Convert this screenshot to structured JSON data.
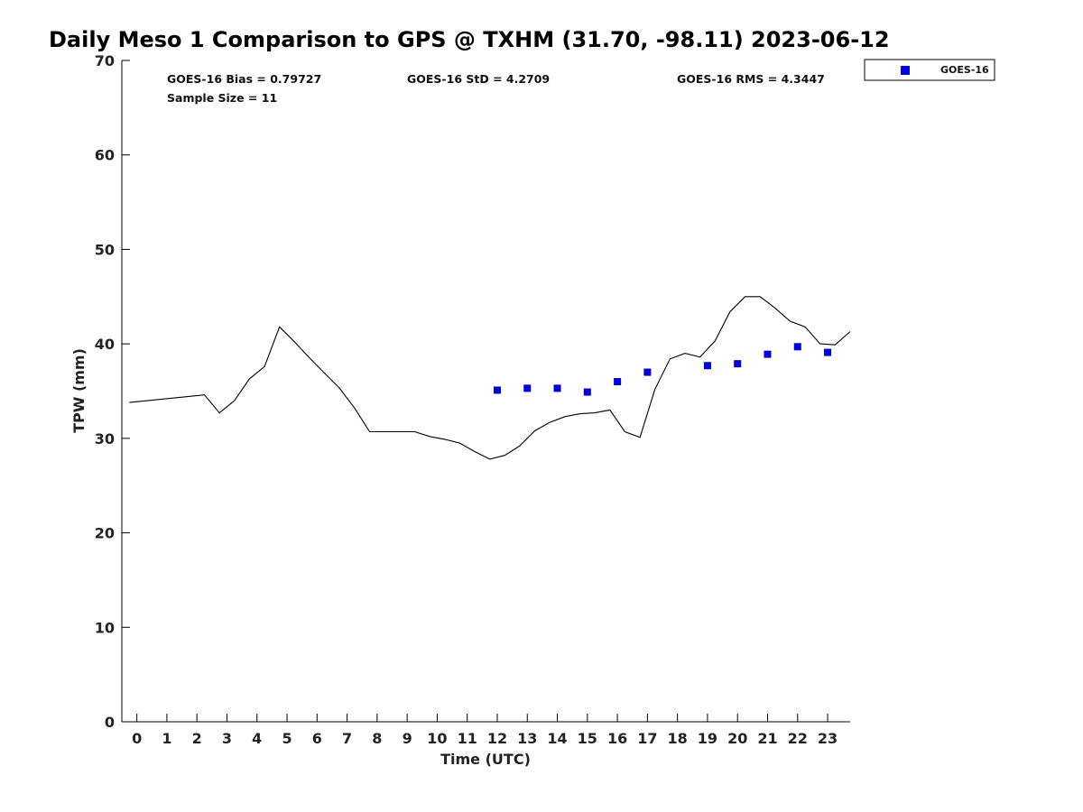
{
  "chart_data": {
    "type": "line",
    "title": "Daily Meso 1 Comparison to GPS @ TXHM (31.70, -98.11) 2023-06-12",
    "xlabel": "Time (UTC)",
    "ylabel": "TPW (mm)",
    "xlim": [
      -0.5,
      23.75
    ],
    "ylim": [
      0,
      70
    ],
    "x_ticks": [
      0,
      1,
      2,
      3,
      4,
      5,
      6,
      7,
      8,
      9,
      10,
      11,
      12,
      13,
      14,
      15,
      16,
      17,
      18,
      19,
      20,
      21,
      22,
      23
    ],
    "y_ticks": [
      0,
      10,
      20,
      30,
      40,
      50,
      60,
      70
    ],
    "grid": false,
    "legend": {
      "position": "top-right, outside plot",
      "entries": [
        "GOES-16"
      ]
    },
    "stats": {
      "bias": "GOES-16 Bias = 0.79727",
      "std": "GOES-16 StD = 4.2709",
      "rms": "GOES-16 RMS = 4.3447",
      "sample_size": "Sample Size = 11"
    },
    "series": [
      {
        "kind": "line",
        "color": "#000000",
        "x": [
          -0.25,
          2.25,
          2.75,
          3.25,
          3.75,
          4.25,
          4.75,
          5.25,
          5.75,
          6.25,
          6.75,
          7.25,
          7.75,
          8.25,
          8.75,
          9.25,
          9.75,
          10.25,
          10.75,
          11.25,
          11.75,
          12.25,
          12.75,
          13.25,
          13.75,
          14.25,
          14.75,
          15.25,
          15.75,
          16.25,
          16.75,
          17.25,
          17.75,
          18.25,
          18.75,
          19.25,
          19.75,
          20.25,
          20.75,
          21.25,
          21.75,
          22.25,
          22.75,
          23.25,
          23.75
        ],
        "y": [
          33.8,
          34.6,
          32.7,
          34.0,
          36.3,
          37.6,
          41.8,
          40.2,
          38.5,
          36.9,
          35.3,
          33.2,
          30.7,
          30.7,
          30.7,
          30.7,
          30.2,
          29.9,
          29.5,
          28.6,
          27.8,
          28.2,
          29.2,
          30.8,
          31.7,
          32.3,
          32.6,
          32.7,
          33.0,
          30.7,
          30.1,
          35.2,
          38.4,
          39.0,
          38.6,
          40.3,
          43.4,
          45.0,
          45.0,
          43.8,
          42.4,
          41.8,
          40.0,
          39.9,
          41.3
        ]
      },
      {
        "kind": "scatter",
        "name": "GOES-16",
        "color": "#0000dd",
        "x": [
          12,
          13,
          14,
          15,
          16,
          17,
          19,
          20,
          21,
          22,
          23
        ],
        "y": [
          35.1,
          35.3,
          35.3,
          34.9,
          36.0,
          37.0,
          37.7,
          37.9,
          38.9,
          39.7,
          39.1
        ]
      }
    ]
  }
}
